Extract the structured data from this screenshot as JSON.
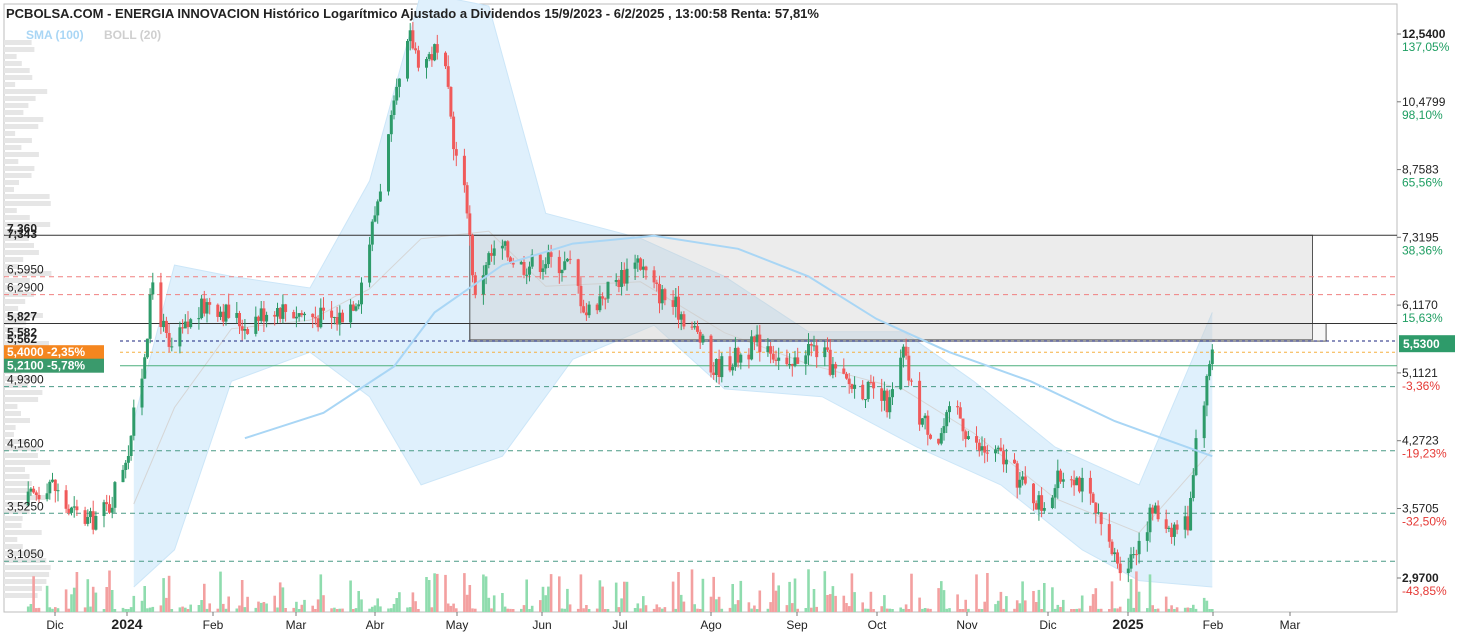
{
  "chart_data": {
    "type": "candlestick",
    "title": "PCBOLSA.COM - ENERGIA INNOVACION Histórico Logarítmico Ajustado a Dividendos 15/9/2023 - 6/2/2025 , 13:00:58 Renta: 57,81%",
    "legend": [
      {
        "label": "SMA (100)",
        "color": "#a9d6f5"
      },
      {
        "label": "BOLL (20)",
        "color": "#cfcfcf"
      }
    ],
    "y_scale": "log",
    "ylim": [
      2.9,
      13.0
    ],
    "right_axis": [
      {
        "price": "12,5400",
        "value": 12.54,
        "pct": "137,05%",
        "pct_color": "#1e9e62",
        "bold": true
      },
      {
        "price": "10,4799",
        "value": 10.4799,
        "pct": "98,10%",
        "pct_color": "#1e9e62"
      },
      {
        "price": "8,7583",
        "value": 8.7583,
        "pct": "65,56%",
        "pct_color": "#1e9e62"
      },
      {
        "price": "7,3195",
        "value": 7.3195,
        "pct": "38,36%",
        "pct_color": "#1e9e62"
      },
      {
        "price": "6,1170",
        "value": 6.117,
        "pct": "15,63%",
        "pct_color": "#1e9e62"
      },
      {
        "price": "5,1121",
        "value": 5.1121,
        "pct": "-3,36%",
        "pct_color": "#e53935"
      },
      {
        "price": "4,2723",
        "value": 4.2723,
        "pct": "-19,23%",
        "pct_color": "#e53935"
      },
      {
        "price": "3,5705",
        "value": 3.5705,
        "pct": "-32,50%",
        "pct_color": "#e53935"
      },
      {
        "price": "2,9700",
        "value": 2.97,
        "pct": "-43,85%",
        "pct_color": "#e53935",
        "bold": true
      }
    ],
    "left_levels": [
      {
        "label": "7,360",
        "value": 7.36,
        "bold": true
      },
      {
        "label": "7,343",
        "value": 7.343,
        "bold": true
      },
      {
        "label": "6,5950",
        "value": 6.595
      },
      {
        "label": "6,2900",
        "value": 6.29
      },
      {
        "label": "5,827",
        "value": 5.827,
        "bold": true
      },
      {
        "label": "5,582",
        "value": 5.582,
        "bold": true
      },
      {
        "label": "5,562",
        "value": 5.562,
        "bold": true
      },
      {
        "label": "4,9300",
        "value": 4.93
      },
      {
        "label": "4,1600",
        "value": 4.16
      },
      {
        "label": "3,5250",
        "value": 3.525
      },
      {
        "label": "3,1050",
        "value": 3.105
      }
    ],
    "badges": [
      {
        "label": "5,4000 -2,35%",
        "value": 5.4,
        "color": "#f5861f"
      },
      {
        "label": "5,2100 -5,78%",
        "value": 5.21,
        "color": "#3a9a6c"
      }
    ],
    "current_price": {
      "label": "5,5300",
      "value": 5.53,
      "color": "#2e9b6a"
    },
    "x_months": [
      "Dic",
      "2024",
      "Feb",
      "Mar",
      "Abr",
      "May",
      "Jun",
      "Jul",
      "Ago",
      "Sep",
      "Oct",
      "Nov",
      "Dic",
      "2025",
      "Feb",
      "Mar"
    ],
    "x_bold": [
      "2024",
      "2025"
    ],
    "price_path": [
      {
        "date": "2023-11-25",
        "price": 3.6
      },
      {
        "date": "2023-12-05",
        "price": 3.85
      },
      {
        "date": "2023-12-12",
        "price": 3.55
      },
      {
        "date": "2023-12-20",
        "price": 3.45
      },
      {
        "date": "2023-12-27",
        "price": 3.6
      },
      {
        "date": "2024-01-03",
        "price": 4.2
      },
      {
        "date": "2024-01-08",
        "price": 5.1
      },
      {
        "date": "2024-01-12",
        "price": 6.5
      },
      {
        "date": "2024-01-18",
        "price": 5.4
      },
      {
        "date": "2024-01-25",
        "price": 5.8
      },
      {
        "date": "2024-02-02",
        "price": 6.2
      },
      {
        "date": "2024-02-08",
        "price": 6.0
      },
      {
        "date": "2024-02-15",
        "price": 5.8
      },
      {
        "date": "2024-02-25",
        "price": 6.1
      },
      {
        "date": "2024-03-10",
        "price": 5.95
      },
      {
        "date": "2024-03-20",
        "price": 5.9
      },
      {
        "date": "2024-03-28",
        "price": 6.3
      },
      {
        "date": "2024-04-03",
        "price": 7.8
      },
      {
        "date": "2024-04-08",
        "price": 9.5
      },
      {
        "date": "2024-04-12",
        "price": 11.0
      },
      {
        "date": "2024-04-16",
        "price": 12.4
      },
      {
        "date": "2024-04-20",
        "price": 11.6
      },
      {
        "date": "2024-04-25",
        "price": 12.0
      },
      {
        "date": "2024-04-29",
        "price": 11.2
      },
      {
        "date": "2024-05-03",
        "price": 9.0
      },
      {
        "date": "2024-05-07",
        "price": 8.0
      },
      {
        "date": "2024-05-10",
        "price": 6.2
      },
      {
        "date": "2024-05-14",
        "price": 6.9
      },
      {
        "date": "2024-05-20",
        "price": 7.1
      },
      {
        "date": "2024-05-27",
        "price": 6.8
      },
      {
        "date": "2024-06-05",
        "price": 6.9
      },
      {
        "date": "2024-06-14",
        "price": 6.8
      },
      {
        "date": "2024-06-20",
        "price": 6.0
      },
      {
        "date": "2024-06-28",
        "price": 6.4
      },
      {
        "date": "2024-07-05",
        "price": 6.7
      },
      {
        "date": "2024-07-08",
        "price": 7.0
      },
      {
        "date": "2024-07-15",
        "price": 6.4
      },
      {
        "date": "2024-07-25",
        "price": 6.0
      },
      {
        "date": "2024-08-01",
        "price": 5.6
      },
      {
        "date": "2024-08-05",
        "price": 5.15
      },
      {
        "date": "2024-08-15",
        "price": 5.35
      },
      {
        "date": "2024-08-25",
        "price": 5.6
      },
      {
        "date": "2024-09-03",
        "price": 5.1
      },
      {
        "date": "2024-09-08",
        "price": 5.5
      },
      {
        "date": "2024-09-15",
        "price": 5.4
      },
      {
        "date": "2024-09-22",
        "price": 5.0
      },
      {
        "date": "2024-10-01",
        "price": 4.9
      },
      {
        "date": "2024-10-10",
        "price": 4.7
      },
      {
        "date": "2024-10-15",
        "price": 5.4
      },
      {
        "date": "2024-10-20",
        "price": 4.6
      },
      {
        "date": "2024-10-28",
        "price": 4.3
      },
      {
        "date": "2024-11-03",
        "price": 4.7
      },
      {
        "date": "2024-11-10",
        "price": 4.2
      },
      {
        "date": "2024-11-20",
        "price": 4.1
      },
      {
        "date": "2024-11-28",
        "price": 3.8
      },
      {
        "date": "2024-12-05",
        "price": 3.6
      },
      {
        "date": "2024-12-15",
        "price": 4.0
      },
      {
        "date": "2024-12-22",
        "price": 3.7
      },
      {
        "date": "2024-12-30",
        "price": 3.2
      },
      {
        "date": "2025-01-05",
        "price": 3.05
      },
      {
        "date": "2025-01-10",
        "price": 3.3
      },
      {
        "date": "2025-01-15",
        "price": 3.55
      },
      {
        "date": "2025-01-22",
        "price": 3.4
      },
      {
        "date": "2025-01-28",
        "price": 3.45
      },
      {
        "date": "2025-01-31",
        "price": 4.3
      },
      {
        "date": "2025-02-04",
        "price": 5.0
      },
      {
        "date": "2025-02-06",
        "price": 5.53
      }
    ],
    "sma100": [
      {
        "date": "2024-02-15",
        "price": 4.3
      },
      {
        "date": "2024-03-15",
        "price": 4.6
      },
      {
        "date": "2024-04-10",
        "price": 5.2
      },
      {
        "date": "2024-04-25",
        "price": 6.0
      },
      {
        "date": "2024-05-20",
        "price": 6.8
      },
      {
        "date": "2024-06-15",
        "price": 7.2
      },
      {
        "date": "2024-07-15",
        "price": 7.35
      },
      {
        "date": "2024-08-15",
        "price": 7.1
      },
      {
        "date": "2024-09-10",
        "price": 6.6
      },
      {
        "date": "2024-10-05",
        "price": 5.9
      },
      {
        "date": "2024-11-01",
        "price": 5.4
      },
      {
        "date": "2024-12-01",
        "price": 5.0
      },
      {
        "date": "2025-01-01",
        "price": 4.5
      },
      {
        "date": "2025-02-06",
        "price": 4.1
      }
    ],
    "boll_upper": [
      {
        "date": "2024-01-05",
        "price": 4.5
      },
      {
        "date": "2024-01-20",
        "price": 6.8
      },
      {
        "date": "2024-02-10",
        "price": 6.6
      },
      {
        "date": "2024-03-10",
        "price": 6.4
      },
      {
        "date": "2024-04-01",
        "price": 8.5
      },
      {
        "date": "2024-04-20",
        "price": 14.0
      },
      {
        "date": "2024-05-15",
        "price": 13.5
      },
      {
        "date": "2024-06-05",
        "price": 7.8
      },
      {
        "date": "2024-07-10",
        "price": 7.3
      },
      {
        "date": "2024-08-10",
        "price": 6.6
      },
      {
        "date": "2024-09-10",
        "price": 5.7
      },
      {
        "date": "2024-10-15",
        "price": 5.7
      },
      {
        "date": "2024-11-10",
        "price": 5.0
      },
      {
        "date": "2024-12-10",
        "price": 4.2
      },
      {
        "date": "2025-01-10",
        "price": 3.8
      },
      {
        "date": "2025-02-06",
        "price": 6.0
      }
    ],
    "boll_lower": [
      {
        "date": "2024-01-05",
        "price": 2.9
      },
      {
        "date": "2024-01-20",
        "price": 3.2
      },
      {
        "date": "2024-02-10",
        "price": 5.0
      },
      {
        "date": "2024-03-10",
        "price": 5.4
      },
      {
        "date": "2024-04-01",
        "price": 4.8
      },
      {
        "date": "2024-04-20",
        "price": 3.8
      },
      {
        "date": "2024-05-20",
        "price": 4.1
      },
      {
        "date": "2024-06-15",
        "price": 5.3
      },
      {
        "date": "2024-07-15",
        "price": 5.8
      },
      {
        "date": "2024-08-10",
        "price": 4.9
      },
      {
        "date": "2024-09-15",
        "price": 4.8
      },
      {
        "date": "2024-10-20",
        "price": 4.2
      },
      {
        "date": "2024-11-20",
        "price": 3.8
      },
      {
        "date": "2024-12-20",
        "price": 3.2
      },
      {
        "date": "2025-01-10",
        "price": 2.95
      },
      {
        "date": "2025-02-06",
        "price": 2.9
      }
    ],
    "zones": [
      {
        "date_from": "2024-05-08",
        "date_to": "2025-03-15",
        "price_top": 7.36,
        "price_bottom": 5.582
      },
      {
        "date_from": "2024-05-08",
        "date_to": "2025-03-20",
        "price_top": 5.827,
        "price_bottom": 5.562
      }
    ],
    "grid": false,
    "legend_position": "top-left"
  }
}
